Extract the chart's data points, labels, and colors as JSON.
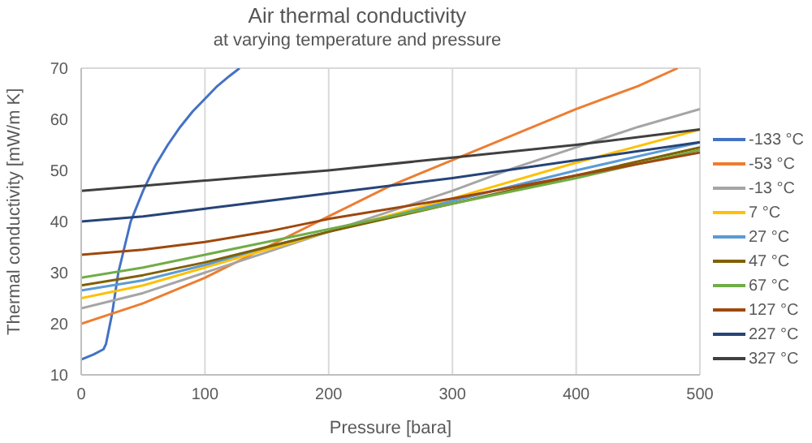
{
  "chart_data": {
    "type": "line",
    "title": "Air thermal conductivity",
    "subtitle": "at varying temperature and pressure",
    "xlabel": "Pressure [bara]",
    "ylabel": "Thermal conductivity [mW/m K]",
    "xlim": [
      0,
      500
    ],
    "xticks": [
      0,
      100,
      200,
      300,
      400,
      500
    ],
    "ylim": [
      10,
      70
    ],
    "yticks": [
      10,
      20,
      30,
      40,
      50,
      60,
      70
    ],
    "grid": true,
    "legend": "right",
    "marker": "none",
    "line_style": "solid",
    "series": [
      {
        "name": "-133 °C",
        "color": "#4472c4",
        "x": [
          0,
          10,
          18,
          20,
          25,
          30,
          40,
          50,
          60,
          70,
          80,
          90,
          100,
          110,
          120,
          128
        ],
        "values": [
          13,
          14,
          15,
          16,
          22,
          30,
          40,
          46,
          51,
          55,
          58.5,
          61.5,
          64,
          66.5,
          68.5,
          70
        ]
      },
      {
        "name": "-53 °C",
        "color": "#ed7d31",
        "x": [
          0,
          50,
          100,
          150,
          200,
          250,
          300,
          350,
          400,
          450,
          482
        ],
        "values": [
          20,
          24,
          29,
          35,
          41,
          47,
          52,
          57,
          62,
          66.5,
          70
        ]
      },
      {
        "name": "-13 °C",
        "color": "#a5a5a5",
        "x": [
          0,
          50,
          100,
          150,
          200,
          250,
          300,
          350,
          400,
          450,
          500
        ],
        "values": [
          23,
          26,
          30,
          34,
          38,
          42,
          46,
          50.5,
          54.5,
          58.5,
          62
        ]
      },
      {
        "name": "7 °C",
        "color": "#ffc000",
        "x": [
          0,
          50,
          100,
          150,
          200,
          300,
          400,
          500
        ],
        "values": [
          25,
          27.5,
          31,
          34.5,
          38,
          44.5,
          51.5,
          58
        ]
      },
      {
        "name": "27 °C",
        "color": "#5b9bd5",
        "x": [
          0,
          50,
          100,
          150,
          200,
          300,
          400,
          500
        ],
        "values": [
          26.5,
          28.5,
          31.5,
          35,
          38,
          44,
          50,
          55.5
        ]
      },
      {
        "name": "47 °C",
        "color": "#806000",
        "x": [
          0,
          50,
          100,
          150,
          200,
          300,
          400,
          500
        ],
        "values": [
          27.5,
          29.5,
          32,
          35,
          38,
          43.5,
          49,
          54.5
        ]
      },
      {
        "name": "67 °C",
        "color": "#70ad47",
        "x": [
          0,
          50,
          100,
          150,
          200,
          300,
          400,
          500
        ],
        "values": [
          29,
          31,
          33.5,
          36,
          38.5,
          43.5,
          48.5,
          54
        ]
      },
      {
        "name": "127 °C",
        "color": "#9e480e",
        "x": [
          0,
          50,
          100,
          150,
          200,
          300,
          400,
          500
        ],
        "values": [
          33.5,
          34.5,
          36,
          38,
          40.5,
          44.5,
          49,
          53.5
        ]
      },
      {
        "name": "227 °C",
        "color": "#264478",
        "x": [
          0,
          50,
          100,
          150,
          200,
          300,
          400,
          500
        ],
        "values": [
          40,
          41,
          42.5,
          44,
          45.5,
          48.5,
          52,
          55.5
        ]
      },
      {
        "name": "327 °C",
        "color": "#404040",
        "x": [
          0,
          50,
          100,
          150,
          200,
          300,
          400,
          500
        ],
        "values": [
          46,
          47,
          48,
          49,
          50,
          52.5,
          55,
          58
        ]
      }
    ]
  }
}
